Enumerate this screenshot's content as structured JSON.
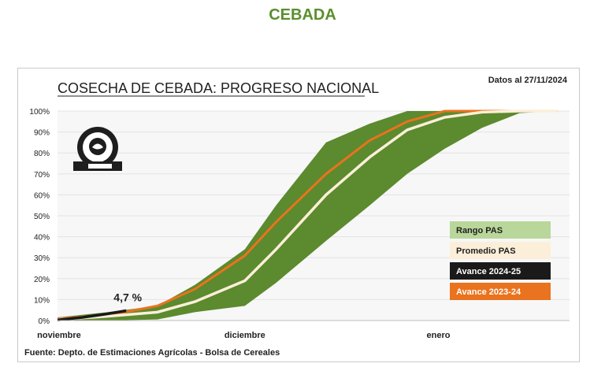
{
  "page": {
    "heading": "CEBADA"
  },
  "chart_data": {
    "type": "area",
    "title": "COSECHA DE CEBADA: PROGRESO NACIONAL",
    "date_note": "Datos al 27/11/2024",
    "source": "Fuente: Depto. de Estimaciones Agrícolas - Bolsa de Cereales",
    "ylim": [
      0,
      100
    ],
    "y_ticks": [
      "0%",
      "10%",
      "20%",
      "30%",
      "40%",
      "50%",
      "60%",
      "70%",
      "80%",
      "90%",
      "100%"
    ],
    "x_ticks": [
      {
        "label": "noviembre",
        "day": 0
      },
      {
        "label": "diciembre",
        "day": 30
      },
      {
        "label": "enero",
        "day": 61
      }
    ],
    "x_range_days": [
      0,
      82
    ],
    "grid": true,
    "legend_position": "right",
    "colors": {
      "range": "#5c8a2e",
      "average": "#fbefd9",
      "current": "#1a1a1a",
      "previous": "#e9731e",
      "grid": "#e3e3e3"
    },
    "series": [
      {
        "name": "Rango PAS",
        "kind": "band",
        "x": [
          0,
          8,
          16,
          22,
          30,
          35,
          43,
          50,
          56,
          62,
          68,
          74,
          80
        ],
        "upper": [
          1.5,
          4,
          7,
          17,
          34,
          55,
          85,
          94,
          100,
          100,
          100,
          100,
          100
        ],
        "lower": [
          0,
          0,
          0.5,
          4,
          7,
          18,
          38,
          55,
          70,
          82,
          92,
          99,
          100
        ]
      },
      {
        "name": "Promedio PAS",
        "kind": "line",
        "x": [
          0,
          8,
          16,
          22,
          30,
          35,
          43,
          50,
          56,
          62,
          68,
          74,
          80
        ],
        "values": [
          0.5,
          2,
          4,
          9,
          19,
          34,
          60,
          78,
          91,
          97,
          99.5,
          100,
          100
        ]
      },
      {
        "name": "Avance 2024-25",
        "kind": "line",
        "x": [
          0,
          4,
          8,
          11
        ],
        "values": [
          0.3,
          1.5,
          3.2,
          4.7
        ]
      },
      {
        "name": "Avance 2023-24",
        "kind": "line",
        "x": [
          0,
          8,
          16,
          22,
          30,
          35,
          43,
          50,
          56,
          62,
          68,
          74,
          80
        ],
        "values": [
          1,
          2.5,
          7,
          15,
          31,
          47,
          70,
          86,
          95,
          100,
          100,
          100,
          100
        ]
      }
    ],
    "annotations": [
      {
        "text": "4,7 %",
        "day": 11,
        "value": 4.7
      }
    ]
  }
}
